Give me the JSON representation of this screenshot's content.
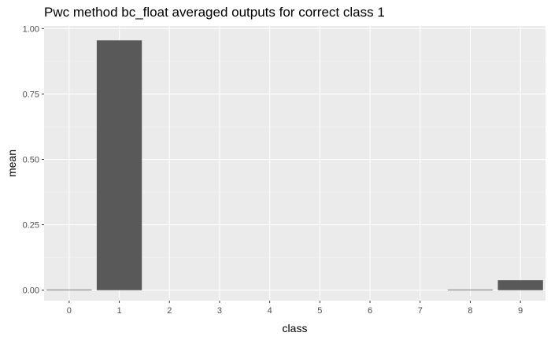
{
  "chart_data": {
    "type": "bar",
    "title": "Pwc method bc_float averaged outputs for correct class 1",
    "xlabel": "class",
    "ylabel": "mean",
    "categories": [
      "0",
      "1",
      "2",
      "3",
      "4",
      "5",
      "6",
      "7",
      "8",
      "9"
    ],
    "values": [
      0.002,
      0.955,
      0.0,
      0.0,
      0.0,
      0.0,
      0.0,
      0.0,
      0.002,
      0.038
    ],
    "ylim": [
      -0.04,
      1.01
    ],
    "yticks": [
      0.0,
      0.25,
      0.5,
      0.75,
      1.0
    ],
    "ytick_labels": [
      "0.00",
      "0.25",
      "0.50",
      "0.75",
      "1.00"
    ],
    "grid": true,
    "colors": {
      "bar": "#595959",
      "panel": "#ebebeb",
      "grid_major": "#ffffff",
      "grid_minor": "#f5f5f5"
    }
  }
}
